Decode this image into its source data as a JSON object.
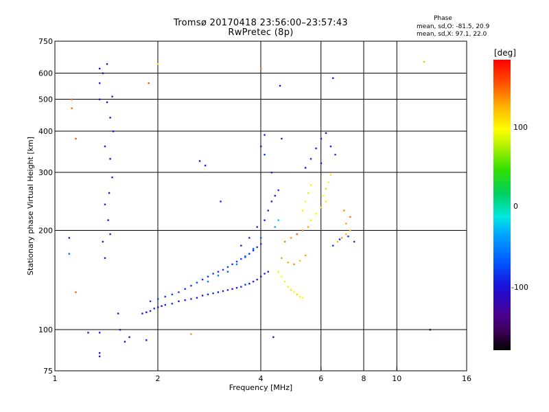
{
  "figure": {
    "title_line1": "Tromsø 20170418 23:56:00–23:57:43",
    "title_line2": "RwPretec (8p)",
    "phase_header": "Phase",
    "phase_o_text": "mean, sd,O: -81.5, 20.9",
    "phase_x_text": "mean, sd,X:  97.1, 22.0",
    "colorbar": {
      "unit": "[deg]",
      "tick_labels": [
        "100",
        "0",
        "-100"
      ]
    }
  },
  "chart_data": {
    "type": "scatter",
    "xlabel": "Frequency [MHz]",
    "ylabel": "Stationary phase Virtual Height [km]",
    "xscale": "log",
    "yscale": "log",
    "xlim": [
      1,
      16
    ],
    "ylim": [
      75,
      750
    ],
    "xticks": [
      1,
      2,
      4,
      6,
      8,
      10,
      16
    ],
    "xtick_labels": [
      "1",
      "2",
      "4",
      "6",
      "8",
      "10",
      "16"
    ],
    "yticks": [
      75,
      100,
      200,
      300,
      400,
      500,
      600,
      750
    ],
    "ytick_labels": [
      "75",
      "100",
      "200",
      "300",
      "400",
      "500",
      "600",
      "750"
    ],
    "xgrid": [
      2,
      4,
      6,
      8,
      10
    ],
    "ygrid": [
      100,
      200,
      300,
      400,
      500,
      600
    ],
    "grid": true,
    "color_scale": {
      "label": "[deg]",
      "range": [
        -180,
        180
      ],
      "ticks": [
        100,
        0,
        -100
      ]
    },
    "series": [
      {
        "points": [
          [
            1.8,
            112,
            -95
          ],
          [
            1.85,
            113,
            -100
          ],
          [
            1.9,
            114,
            -92
          ],
          [
            1.95,
            116,
            -88
          ],
          [
            2.0,
            117,
            -110
          ],
          [
            2.05,
            118,
            -96
          ],
          [
            2.1,
            119,
            -90
          ],
          [
            2.2,
            120,
            -85
          ],
          [
            2.3,
            122,
            -100
          ],
          [
            2.4,
            123,
            -92
          ],
          [
            2.5,
            124,
            -88
          ],
          [
            2.6,
            125,
            -96
          ],
          [
            2.7,
            127,
            -104
          ],
          [
            2.8,
            128,
            -90
          ],
          [
            2.9,
            129,
            -86
          ],
          [
            3.0,
            130,
            -98
          ],
          [
            3.1,
            131,
            -92
          ],
          [
            3.2,
            132,
            -88
          ],
          [
            3.3,
            133,
            -100
          ],
          [
            3.4,
            134,
            -94
          ],
          [
            3.5,
            135,
            -90
          ],
          [
            3.6,
            137,
            -86
          ],
          [
            3.7,
            138,
            -96
          ],
          [
            3.8,
            140,
            -92
          ],
          [
            3.9,
            142,
            -88
          ],
          [
            4.0,
            145,
            -100
          ],
          [
            4.1,
            148,
            -94
          ],
          [
            4.2,
            150,
            -90
          ],
          [
            1.9,
            122,
            -80
          ],
          [
            2.0,
            124,
            -78
          ],
          [
            2.1,
            126,
            -84
          ],
          [
            2.2,
            128,
            -76
          ],
          [
            2.3,
            130,
            -82
          ],
          [
            2.4,
            133,
            -86
          ],
          [
            2.5,
            136,
            -80
          ],
          [
            2.6,
            139,
            -75
          ],
          [
            2.7,
            142,
            -88
          ],
          [
            2.8,
            145,
            -82
          ],
          [
            2.9,
            148,
            -78
          ],
          [
            3.0,
            150,
            -84
          ],
          [
            3.1,
            152,
            -80
          ],
          [
            3.2,
            155,
            -76
          ],
          [
            3.3,
            158,
            -88
          ],
          [
            3.4,
            161,
            -82
          ],
          [
            3.5,
            164,
            -78
          ],
          [
            3.6,
            167,
            -84
          ],
          [
            3.7,
            170,
            -90
          ],
          [
            3.8,
            174,
            -86
          ],
          [
            3.9,
            178,
            -80
          ],
          [
            4.0,
            182,
            -88
          ],
          [
            2.8,
            140,
            -60
          ],
          [
            3.0,
            146,
            -55
          ],
          [
            3.2,
            150,
            -65
          ],
          [
            3.4,
            158,
            -58
          ],
          [
            3.6,
            166,
            -62
          ],
          [
            3.8,
            176,
            -66
          ],
          [
            4.0,
            190,
            -70
          ],
          [
            3.5,
            180,
            -92
          ],
          [
            3.7,
            190,
            -96
          ],
          [
            3.9,
            205,
            -90
          ],
          [
            4.1,
            215,
            -94
          ],
          [
            4.2,
            230,
            -88
          ],
          [
            4.3,
            245,
            -92
          ],
          [
            4.4,
            255,
            -96
          ],
          [
            4.5,
            265,
            -90
          ],
          [
            4.3,
            300,
            -94
          ],
          [
            4.1,
            340,
            -88
          ],
          [
            4.0,
            360,
            -92
          ],
          [
            4.1,
            390,
            -96
          ],
          [
            4.6,
            380,
            -90
          ],
          [
            4.4,
            205,
            -40
          ],
          [
            4.5,
            215,
            -30
          ],
          [
            4.5,
            150,
            90
          ],
          [
            4.6,
            145,
            95
          ],
          [
            4.7,
            140,
            100
          ],
          [
            4.8,
            135,
            92
          ],
          [
            4.9,
            132,
            105
          ],
          [
            5.0,
            130,
            98
          ],
          [
            5.1,
            128,
            110
          ],
          [
            5.2,
            126,
            100
          ],
          [
            5.3,
            125,
            95
          ],
          [
            4.6,
            165,
            130
          ],
          [
            4.8,
            160,
            125
          ],
          [
            5.0,
            158,
            135
          ],
          [
            5.2,
            162,
            120
          ],
          [
            5.4,
            168,
            128
          ],
          [
            4.7,
            185,
            140
          ],
          [
            4.9,
            190,
            132
          ],
          [
            5.1,
            195,
            145
          ],
          [
            5.3,
            200,
            138
          ],
          [
            5.5,
            205,
            130
          ],
          [
            5.6,
            215,
            105
          ],
          [
            5.8,
            225,
            98
          ],
          [
            6.0,
            235,
            110
          ],
          [
            6.2,
            245,
            102
          ],
          [
            6.1,
            255,
            96
          ],
          [
            6.2,
            268,
            108
          ],
          [
            6.3,
            280,
            100
          ],
          [
            6.4,
            295,
            104
          ],
          [
            5.3,
            230,
            100
          ],
          [
            5.4,
            245,
            96
          ],
          [
            5.5,
            260,
            105
          ],
          [
            5.6,
            275,
            98
          ],
          [
            5.4,
            310,
            -95
          ],
          [
            5.6,
            330,
            -90
          ],
          [
            5.8,
            355,
            -88
          ],
          [
            6.0,
            380,
            -92
          ],
          [
            6.2,
            395,
            -96
          ],
          [
            6.4,
            360,
            -90
          ],
          [
            6.6,
            340,
            -86
          ],
          [
            6.0,
            320,
            -94
          ],
          [
            6.7,
            185,
            120
          ],
          [
            6.9,
            190,
            130
          ],
          [
            7.1,
            195,
            125
          ],
          [
            7.3,
            200,
            118
          ],
          [
            6.5,
            180,
            -85
          ],
          [
            6.8,
            188,
            -90
          ],
          [
            7.2,
            192,
            -80
          ],
          [
            7.5,
            185,
            -88
          ],
          [
            7.1,
            210,
            130
          ],
          [
            7.3,
            220,
            140
          ],
          [
            7.0,
            230,
            135
          ],
          [
            1.35,
            620,
            -110
          ],
          [
            1.38,
            600,
            -100
          ],
          [
            1.42,
            640,
            -105
          ],
          [
            1.35,
            560,
            -95
          ],
          [
            1.35,
            500,
            -108
          ],
          [
            1.42,
            490,
            -100
          ],
          [
            1.47,
            510,
            -96
          ],
          [
            1.45,
            440,
            -104
          ],
          [
            1.48,
            400,
            -100
          ],
          [
            1.4,
            360,
            -95
          ],
          [
            1.45,
            330,
            -102
          ],
          [
            1.47,
            290,
            -98
          ],
          [
            1.44,
            260,
            -100
          ],
          [
            1.4,
            240,
            -92
          ],
          [
            1.43,
            215,
            -100
          ],
          [
            1.45,
            195,
            -96
          ],
          [
            1.38,
            185,
            -104
          ],
          [
            1.4,
            165,
            -100
          ],
          [
            1.35,
            83,
            -110
          ],
          [
            1.35,
            85,
            -105
          ],
          [
            1.25,
            98,
            -100
          ],
          [
            1.35,
            98,
            -96
          ],
          [
            1.55,
            100,
            -102
          ],
          [
            1.6,
            92,
            -98
          ],
          [
            1.65,
            95,
            -104
          ],
          [
            1.85,
            93,
            -100
          ],
          [
            1.53,
            112,
            -95
          ],
          [
            1.1,
            190,
            -98
          ],
          [
            1.1,
            170,
            -60
          ],
          [
            1.12,
            500,
            140
          ],
          [
            1.12,
            470,
            145
          ],
          [
            1.15,
            380,
            150
          ],
          [
            1.15,
            130,
            145
          ],
          [
            1.88,
            560,
            150
          ],
          [
            2.0,
            640,
            105
          ],
          [
            2.5,
            97,
            130
          ],
          [
            2.65,
            325,
            -100
          ],
          [
            2.75,
            315,
            -96
          ],
          [
            3.05,
            245,
            -90
          ],
          [
            4.35,
            95,
            -120
          ],
          [
            4.55,
            550,
            -98
          ],
          [
            6.5,
            580,
            -95
          ],
          [
            4.0,
            620,
            140
          ],
          [
            12.0,
            650,
            120
          ],
          [
            12.5,
            100,
            -160
          ]
        ]
      }
    ]
  }
}
